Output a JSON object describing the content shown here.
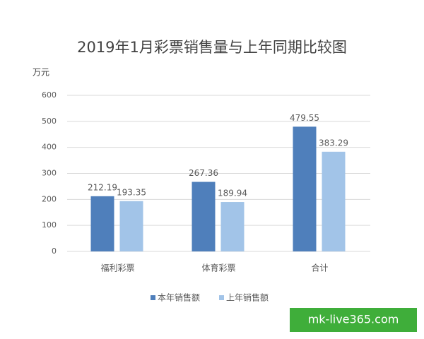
{
  "chart_data": {
    "type": "bar",
    "title": "2019年1月彩票销售量与上年同期比较图",
    "y_label": "万元",
    "categories": [
      "福利彩票",
      "体育彩票",
      "合计"
    ],
    "series": [
      {
        "name": "本年销售额",
        "color": "#4f7fbb",
        "values": [
          212.19,
          267.36,
          479.55
        ]
      },
      {
        "name": "上年销售额",
        "color": "#a2c4e8",
        "values": [
          193.35,
          189.94,
          383.29
        ]
      }
    ],
    "ylim": [
      0,
      600
    ],
    "yticks": [
      0,
      100,
      200,
      300,
      400,
      500,
      600
    ],
    "grid": true,
    "legend": "bottom"
  },
  "watermark": "mk-live365.com"
}
